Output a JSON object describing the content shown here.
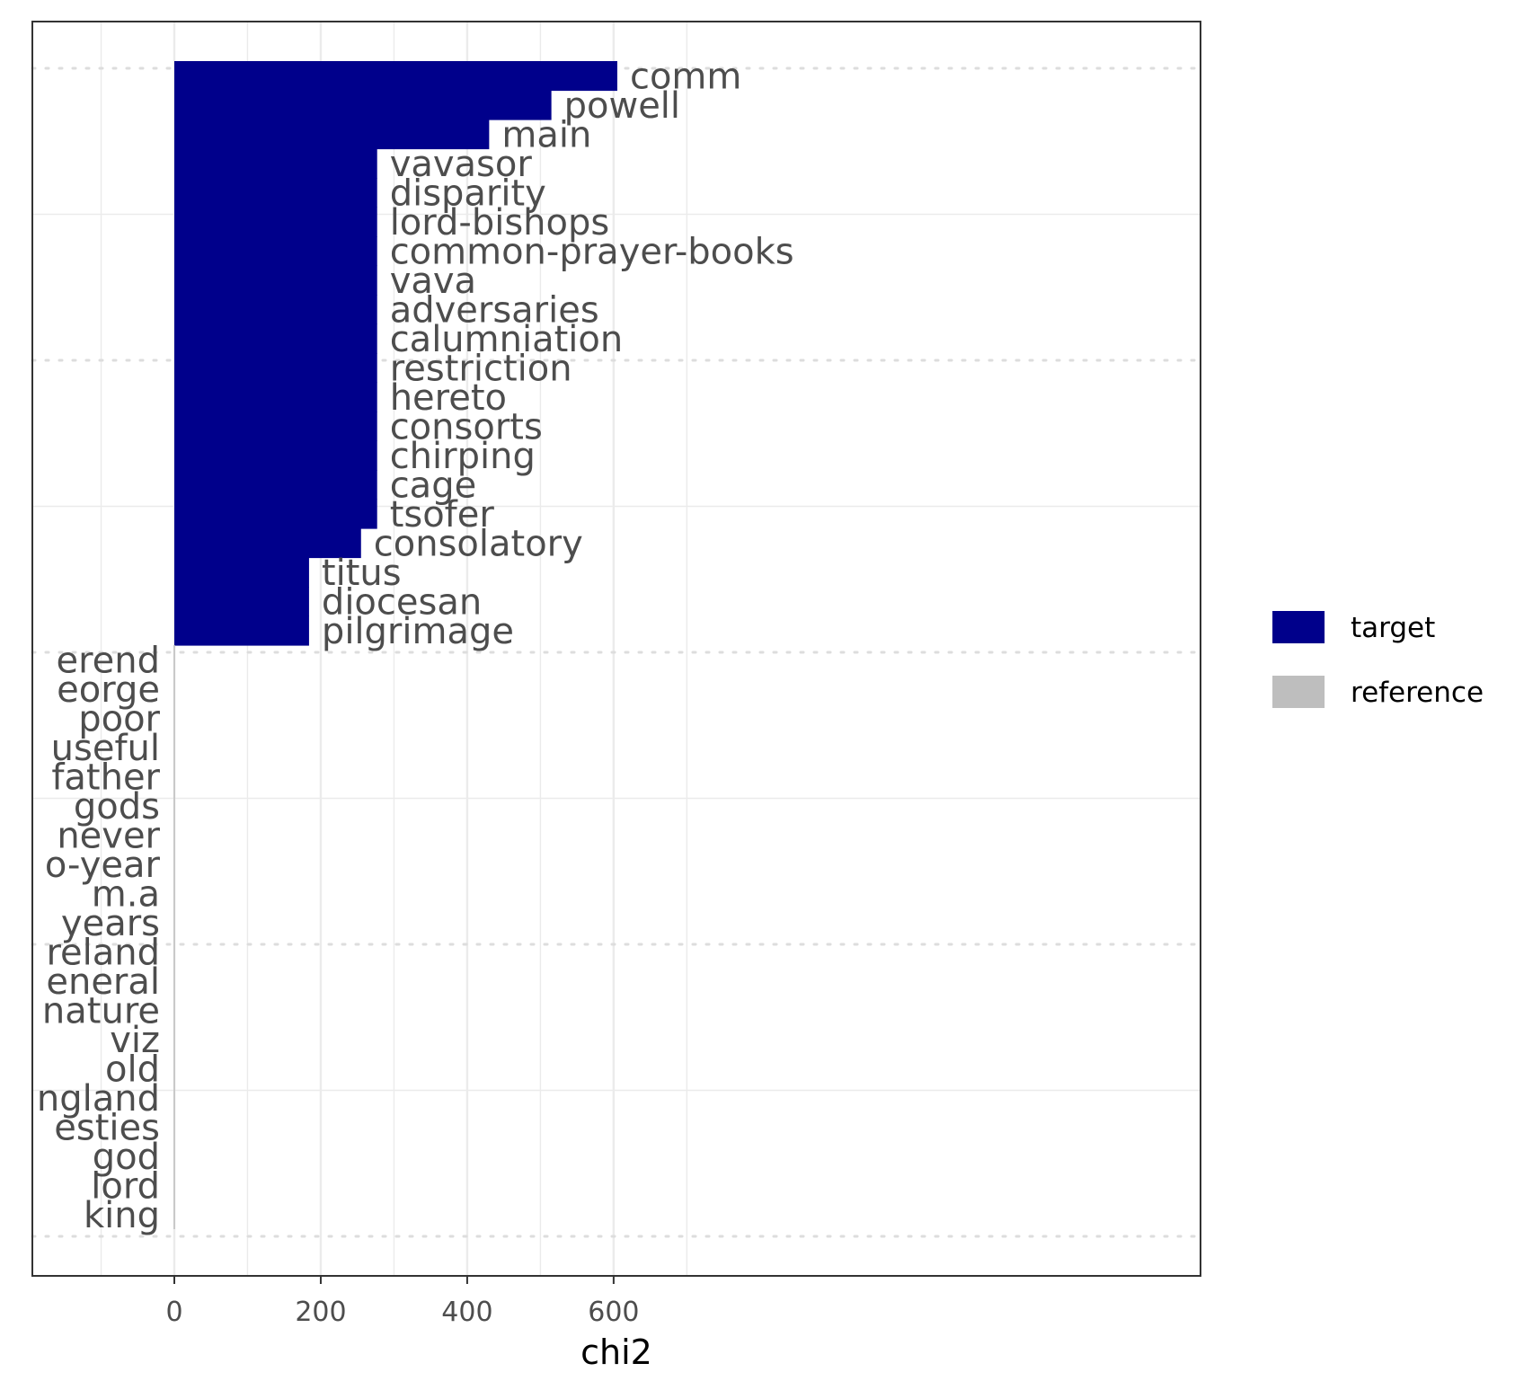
{
  "chart_data": {
    "type": "bar",
    "orientation": "horizontal",
    "xlabel": "chi2",
    "ylabel": "",
    "xlim": [
      -97,
      700
    ],
    "x_ticks": [
      0,
      200,
      400,
      600
    ],
    "grid": true,
    "legend": {
      "position": "right",
      "entries": [
        {
          "name": "target",
          "color": "#00008b"
        },
        {
          "name": "reference",
          "color": "#bebebe"
        }
      ]
    },
    "colors": {
      "target": "#00008b",
      "reference": "#bebebe"
    },
    "target": [
      {
        "label": "comm",
        "value": 605
      },
      {
        "label": "powell",
        "value": 515
      },
      {
        "label": "main",
        "value": 430
      },
      {
        "label": "vavasor",
        "value": 277
      },
      {
        "label": "disparity",
        "value": 277
      },
      {
        "label": "lord-bishops",
        "value": 277
      },
      {
        "label": "common-prayer-books",
        "value": 277
      },
      {
        "label": "vava",
        "value": 277
      },
      {
        "label": "adversaries",
        "value": 277
      },
      {
        "label": "calumniation",
        "value": 277
      },
      {
        "label": "restriction",
        "value": 277
      },
      {
        "label": "hereto",
        "value": 277
      },
      {
        "label": "consorts",
        "value": 277
      },
      {
        "label": "chirping",
        "value": 277
      },
      {
        "label": "cage",
        "value": 277
      },
      {
        "label": "tsofer",
        "value": 277
      },
      {
        "label": "consolatory",
        "value": 255
      },
      {
        "label": "titus",
        "value": 184
      },
      {
        "label": "diocesan",
        "value": 184
      },
      {
        "label": "pilgrimage",
        "value": 184
      }
    ],
    "reference": [
      {
        "label": "erend",
        "value": 0
      },
      {
        "label": "eorge",
        "value": 0
      },
      {
        "label": "poor",
        "value": 0
      },
      {
        "label": "useful",
        "value": 0
      },
      {
        "label": "father",
        "value": 0
      },
      {
        "label": "gods",
        "value": 0
      },
      {
        "label": "never",
        "value": 0
      },
      {
        "label": "o-year",
        "value": 0
      },
      {
        "label": "m.a",
        "value": 0
      },
      {
        "label": "years",
        "value": 0
      },
      {
        "label": "reland",
        "value": 0
      },
      {
        "label": "eneral",
        "value": 0
      },
      {
        "label": "nature",
        "value": 0
      },
      {
        "label": "viz",
        "value": 0
      },
      {
        "label": "old",
        "value": 0
      },
      {
        "label": "ngland",
        "value": 0
      },
      {
        "label": "esties",
        "value": 0
      },
      {
        "label": "god",
        "value": 0
      },
      {
        "label": "lord",
        "value": 0
      },
      {
        "label": "king",
        "value": 0
      }
    ]
  }
}
